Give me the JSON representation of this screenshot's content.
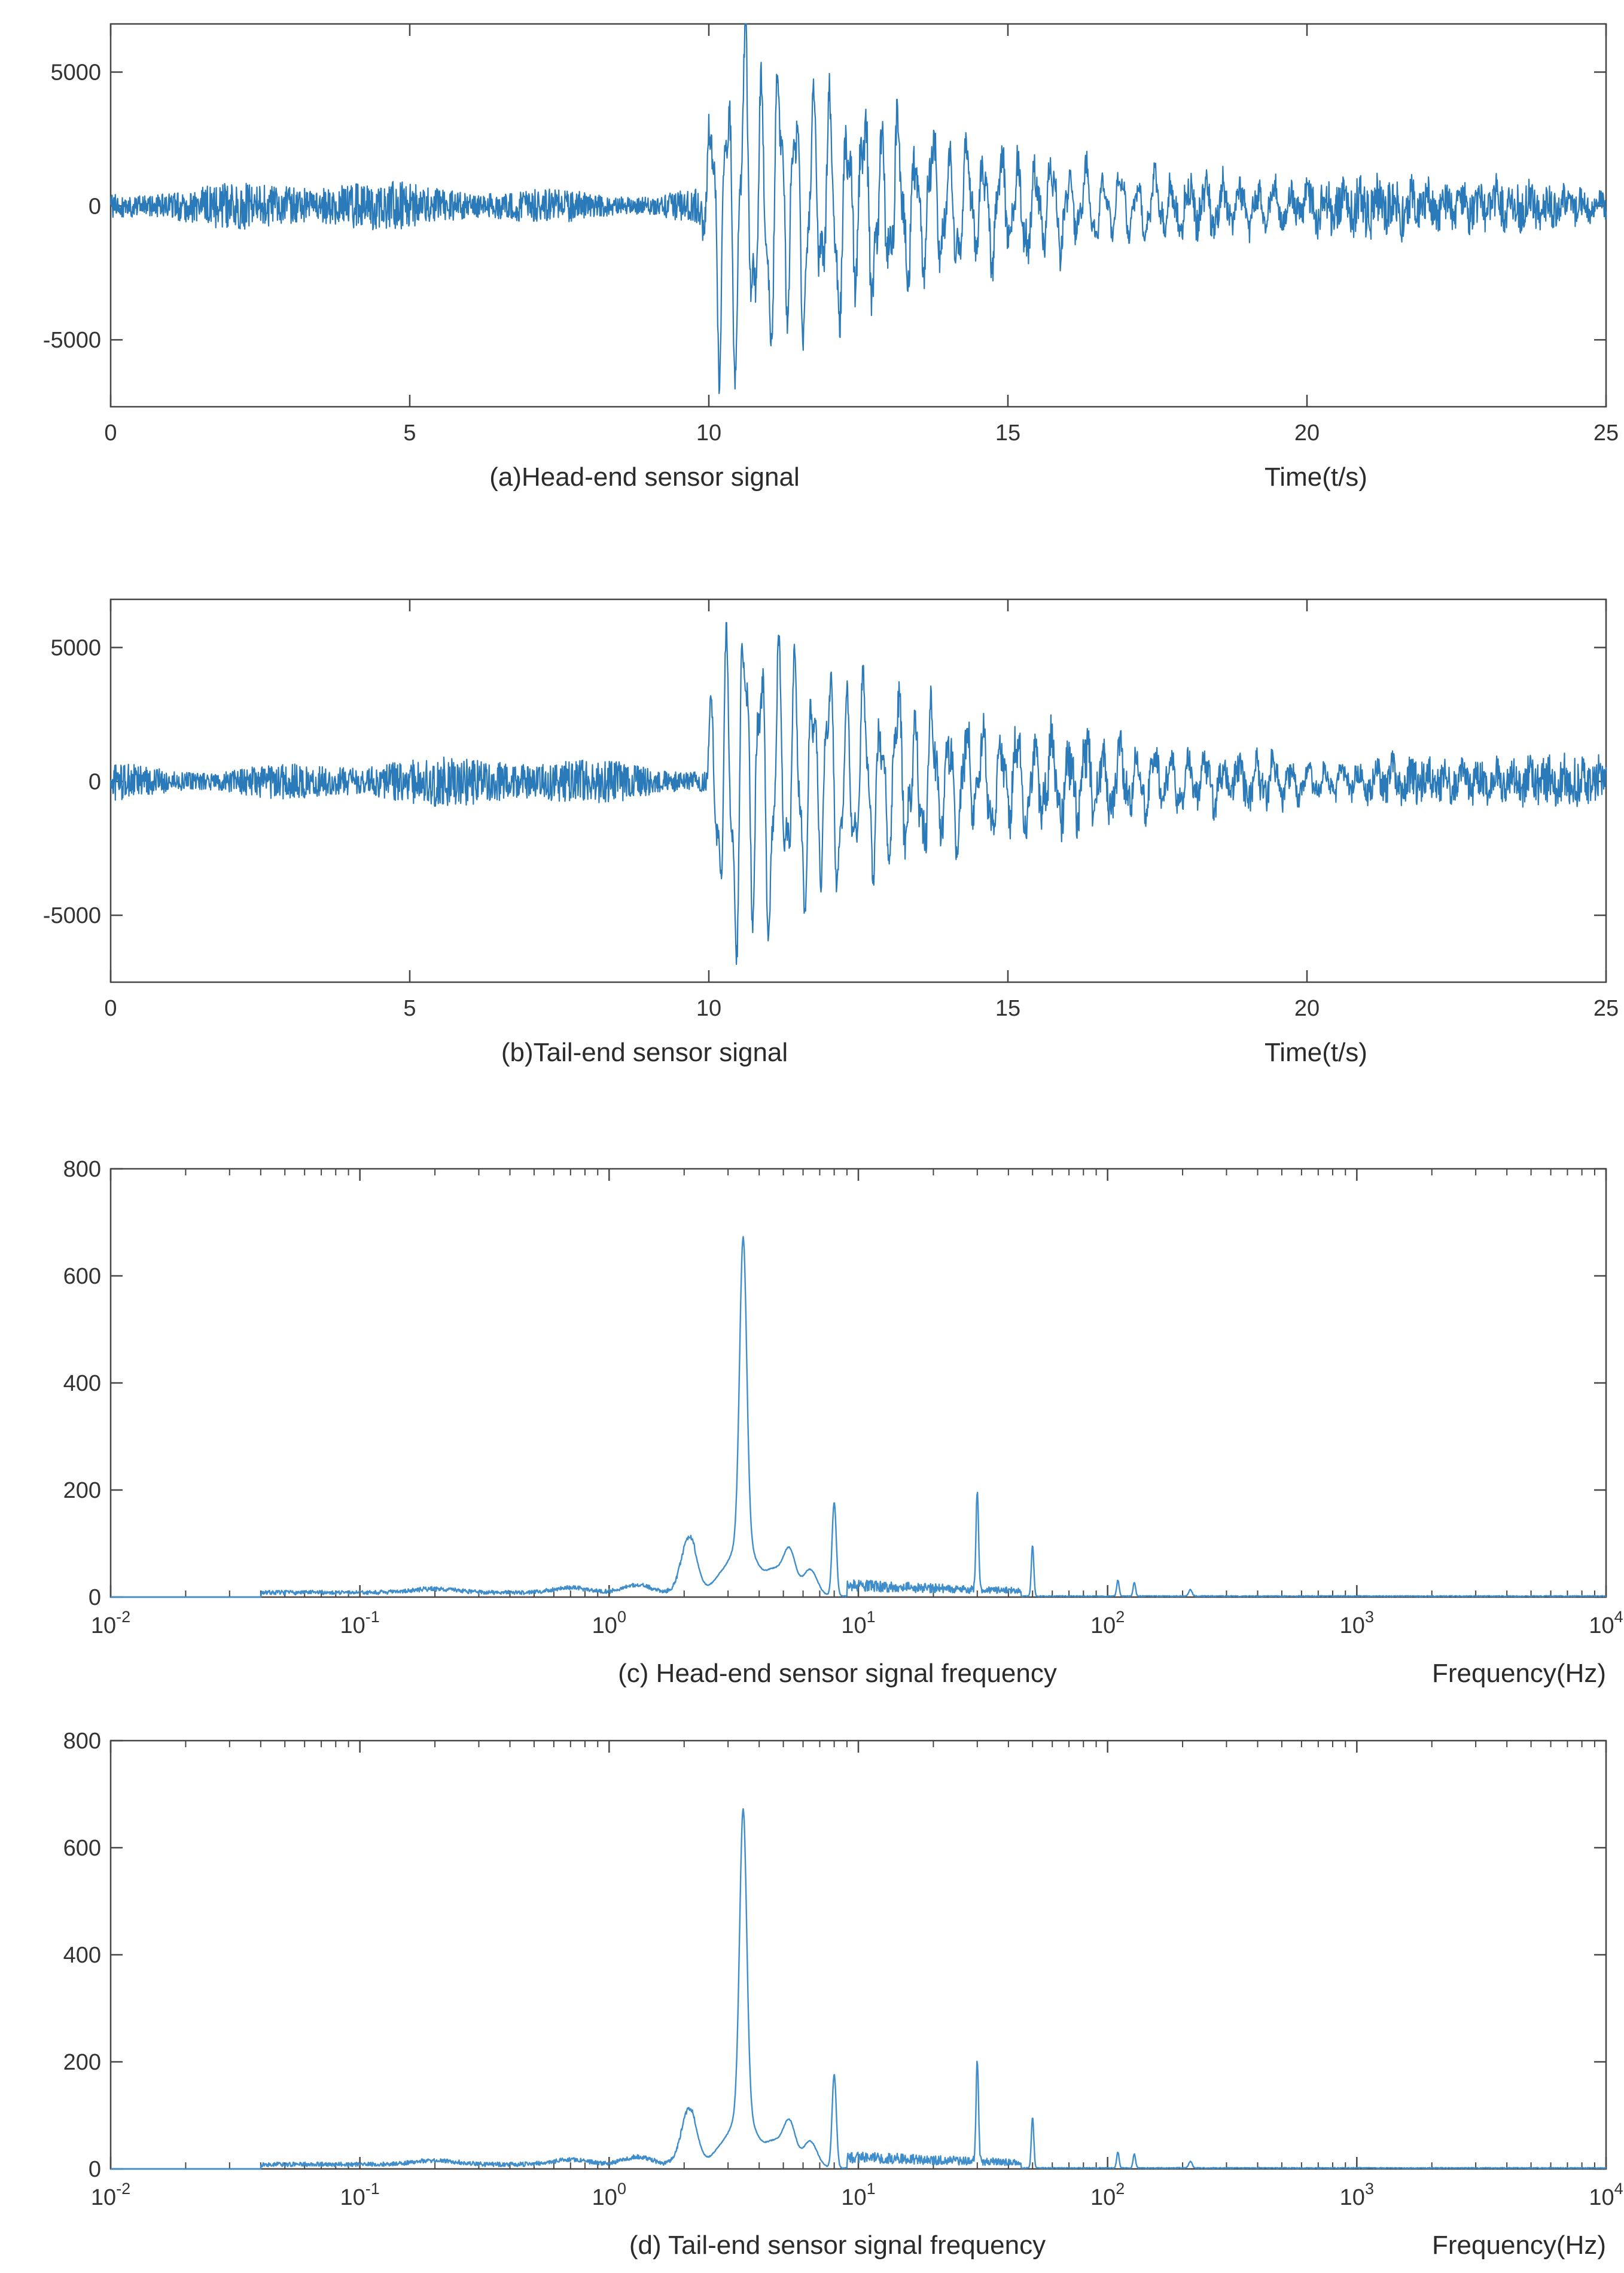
{
  "style": {
    "background": "#ffffff",
    "axis_color": "#454545",
    "text_color": "#333333",
    "time_line_color": "#2a7ab9",
    "freq_line_color": "#3f8ecb"
  },
  "chart_data": [
    {
      "id": "a",
      "type": "line",
      "domain": "time",
      "caption": "(a)Head-end sensor signal",
      "xlabel": "Time(t/s)",
      "xlim": [
        0,
        25
      ],
      "ylim": [
        -7500,
        6800
      ],
      "xticks": [
        0,
        5,
        10,
        15,
        20,
        25
      ],
      "yticks": [
        -5000,
        0,
        5000
      ],
      "signal": {
        "description": "stationary broadband noise until ~10 s, then large decaying oscillatory burst (~3.5 Hz) peaking near 6800 and -6900, settling back toward noise level by 25 s",
        "seed": 41,
        "noise_amp": 820,
        "burst_start": 9.85,
        "burst_freq_hz": 3.5,
        "burst_amp": 4800,
        "burst_amp2": 1500,
        "decay_fast_s": 3.0,
        "decay_slow_s": 8.0
      }
    },
    {
      "id": "b",
      "type": "line",
      "domain": "time",
      "caption": "(b)Tail-end sensor signal",
      "xlabel": "Time(t/s)",
      "xlim": [
        0,
        25
      ],
      "ylim": [
        -7500,
        6800
      ],
      "xticks": [
        0,
        5,
        10,
        15,
        20,
        25
      ],
      "yticks": [
        -5000,
        0,
        5000
      ],
      "signal": {
        "description": "same character as head-end signal: noise floor then decaying burst starting near 10 s",
        "seed": 97,
        "noise_amp": 820,
        "burst_start": 9.9,
        "burst_freq_hz": 3.5,
        "burst_amp": 4800,
        "burst_amp2": 1500,
        "decay_fast_s": 3.0,
        "decay_slow_s": 8.0
      }
    },
    {
      "id": "c",
      "type": "line",
      "domain": "frequency",
      "caption": "(c) Head-end sensor signal frequency",
      "xlabel": "Frequency(Hz)",
      "xlim_exp": [
        -2,
        4
      ],
      "ylim": [
        0,
        800
      ],
      "xticks_exp": [
        -2,
        -1,
        0,
        1,
        2,
        3,
        4
      ],
      "yticks": [
        0,
        200,
        400,
        600,
        800
      ],
      "spectrum": {
        "seed": 7,
        "start_hz": 0.04,
        "tail_level": 2,
        "noise_floor": {
          "from_hz": 0.04,
          "to_hz": 2.2,
          "level": 8
        },
        "noise_band": {
          "from_hz": 9,
          "to_hz": 45,
          "level": 26
        },
        "peaks": [
          {
            "hz": 0.2,
            "amp": 7,
            "w": 0.12
          },
          {
            "hz": 0.7,
            "amp": 9,
            "w": 0.1
          },
          {
            "hz": 1.3,
            "amp": 14,
            "w": 0.08
          },
          {
            "hz": 2.1,
            "amp": 105,
            "w": 0.045
          },
          {
            "hz": 2.75,
            "amp": 25,
            "w": 0.05
          },
          {
            "hz": 3.45,
            "amp": 560,
            "w": 0.02
          },
          {
            "hz": 3.45,
            "amp": 110,
            "w": 0.07
          },
          {
            "hz": 4.6,
            "amp": 45,
            "w": 0.05
          },
          {
            "hz": 5.3,
            "amp": 80,
            "w": 0.035
          },
          {
            "hz": 6.4,
            "amp": 50,
            "w": 0.04
          },
          {
            "hz": 8.0,
            "amp": 175,
            "w": 0.012
          },
          {
            "hz": 30,
            "amp": 185,
            "w": 0.007
          },
          {
            "hz": 50,
            "amp": 95,
            "w": 0.007
          },
          {
            "hz": 110,
            "amp": 30,
            "w": 0.007
          },
          {
            "hz": 128,
            "amp": 26,
            "w": 0.007
          },
          {
            "hz": 215,
            "amp": 12,
            "w": 0.01
          }
        ],
        "main_peak": {
          "hz": 3.45,
          "amp": 680
        }
      }
    },
    {
      "id": "d",
      "type": "line",
      "domain": "frequency",
      "caption": "(d) Tail-end sensor signal frequency",
      "xlabel": "Frequency(Hz)",
      "xlim_exp": [
        -2,
        4
      ],
      "ylim": [
        0,
        800
      ],
      "xticks_exp": [
        -2,
        -1,
        0,
        1,
        2,
        3,
        4
      ],
      "yticks": [
        0,
        200,
        400,
        600,
        800
      ],
      "spectrum": {
        "seed": 13,
        "start_hz": 0.04,
        "tail_level": 2,
        "noise_floor": {
          "from_hz": 0.04,
          "to_hz": 2.2,
          "level": 8
        },
        "noise_band": {
          "from_hz": 9,
          "to_hz": 45,
          "level": 26
        },
        "peaks": [
          {
            "hz": 0.2,
            "amp": 7,
            "w": 0.12
          },
          {
            "hz": 0.7,
            "amp": 9,
            "w": 0.1
          },
          {
            "hz": 1.3,
            "amp": 14,
            "w": 0.08
          },
          {
            "hz": 2.1,
            "amp": 105,
            "w": 0.045
          },
          {
            "hz": 2.75,
            "amp": 25,
            "w": 0.05
          },
          {
            "hz": 3.45,
            "amp": 560,
            "w": 0.02
          },
          {
            "hz": 3.45,
            "amp": 110,
            "w": 0.07
          },
          {
            "hz": 4.6,
            "amp": 45,
            "w": 0.05
          },
          {
            "hz": 5.3,
            "amp": 80,
            "w": 0.035
          },
          {
            "hz": 6.4,
            "amp": 50,
            "w": 0.04
          },
          {
            "hz": 8.0,
            "amp": 175,
            "w": 0.012
          },
          {
            "hz": 30,
            "amp": 185,
            "w": 0.007
          },
          {
            "hz": 50,
            "amp": 95,
            "w": 0.007
          },
          {
            "hz": 110,
            "amp": 30,
            "w": 0.007
          },
          {
            "hz": 128,
            "amp": 26,
            "w": 0.007
          },
          {
            "hz": 215,
            "amp": 12,
            "w": 0.01
          }
        ],
        "main_peak": {
          "hz": 3.45,
          "amp": 680
        }
      }
    }
  ]
}
